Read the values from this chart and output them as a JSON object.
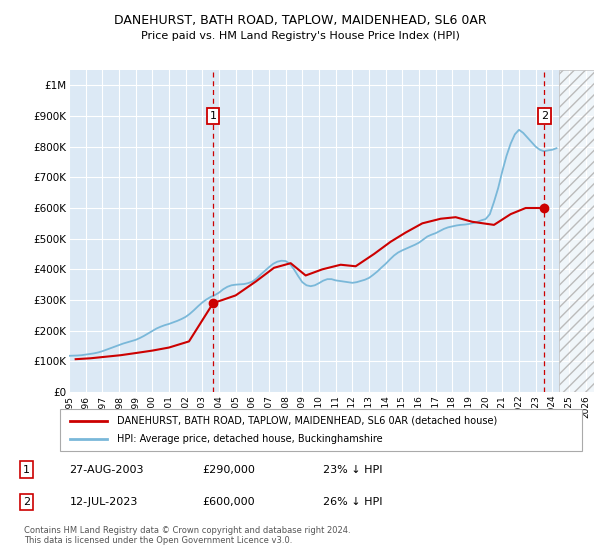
{
  "title": "DANEHURST, BATH ROAD, TAPLOW, MAIDENHEAD, SL6 0AR",
  "subtitle": "Price paid vs. HM Land Registry's House Price Index (HPI)",
  "background_color": "#dce9f5",
  "hpi_color": "#7ab8d9",
  "price_color": "#cc0000",
  "vline_color": "#cc0000",
  "ylim": [
    0,
    1050000
  ],
  "yticks": [
    0,
    100000,
    200000,
    300000,
    400000,
    500000,
    600000,
    700000,
    800000,
    900000,
    1000000
  ],
  "ytick_labels": [
    "£0",
    "£100K",
    "£200K",
    "£300K",
    "£400K",
    "£500K",
    "£600K",
    "£700K",
    "£800K",
    "£900K",
    "£1M"
  ],
  "xlim_start": 1995,
  "xlim_end": 2026.5,
  "xticks": [
    1995,
    1996,
    1997,
    1998,
    1999,
    2000,
    2001,
    2002,
    2003,
    2004,
    2005,
    2006,
    2007,
    2008,
    2009,
    2010,
    2011,
    2012,
    2013,
    2014,
    2015,
    2016,
    2017,
    2018,
    2019,
    2020,
    2021,
    2022,
    2023,
    2024,
    2025,
    2026
  ],
  "ann1_x": 2003.65,
  "ann1_y": 290000,
  "ann1_label": "1",
  "ann1_date": "27-AUG-2003",
  "ann1_price": "£290,000",
  "ann1_pct": "23% ↓ HPI",
  "ann2_x": 2023.53,
  "ann2_y": 600000,
  "ann2_label": "2",
  "ann2_date": "12-JUL-2023",
  "ann2_price": "£600,000",
  "ann2_pct": "26% ↓ HPI",
  "legend_label1": "DANEHURST, BATH ROAD, TAPLOW, MAIDENHEAD, SL6 0AR (detached house)",
  "legend_label2": "HPI: Average price, detached house, Buckinghamshire",
  "footer1": "Contains HM Land Registry data © Crown copyright and database right 2024.",
  "footer2": "This data is licensed under the Open Government Licence v3.0.",
  "hpi_data_x": [
    1995.0,
    1995.25,
    1995.5,
    1995.75,
    1996.0,
    1996.25,
    1996.5,
    1996.75,
    1997.0,
    1997.25,
    1997.5,
    1997.75,
    1998.0,
    1998.25,
    1998.5,
    1998.75,
    1999.0,
    1999.25,
    1999.5,
    1999.75,
    2000.0,
    2000.25,
    2000.5,
    2000.75,
    2001.0,
    2001.25,
    2001.5,
    2001.75,
    2002.0,
    2002.25,
    2002.5,
    2002.75,
    2003.0,
    2003.25,
    2003.5,
    2003.75,
    2004.0,
    2004.25,
    2004.5,
    2004.75,
    2005.0,
    2005.25,
    2005.5,
    2005.75,
    2006.0,
    2006.25,
    2006.5,
    2006.75,
    2007.0,
    2007.25,
    2007.5,
    2007.75,
    2008.0,
    2008.25,
    2008.5,
    2008.75,
    2009.0,
    2009.25,
    2009.5,
    2009.75,
    2010.0,
    2010.25,
    2010.5,
    2010.75,
    2011.0,
    2011.25,
    2011.5,
    2011.75,
    2012.0,
    2012.25,
    2012.5,
    2012.75,
    2013.0,
    2013.25,
    2013.5,
    2013.75,
    2014.0,
    2014.25,
    2014.5,
    2014.75,
    2015.0,
    2015.25,
    2015.5,
    2015.75,
    2016.0,
    2016.25,
    2016.5,
    2016.75,
    2017.0,
    2017.25,
    2017.5,
    2017.75,
    2018.0,
    2018.25,
    2018.5,
    2018.75,
    2019.0,
    2019.25,
    2019.5,
    2019.75,
    2020.0,
    2020.25,
    2020.5,
    2020.75,
    2021.0,
    2021.25,
    2021.5,
    2021.75,
    2022.0,
    2022.25,
    2022.5,
    2022.75,
    2023.0,
    2023.25,
    2023.5,
    2023.75,
    2024.0,
    2024.25
  ],
  "hpi_data_y": [
    118000,
    118500,
    119000,
    120000,
    122000,
    124000,
    126000,
    129000,
    133000,
    138000,
    143000,
    148000,
    153000,
    158000,
    162000,
    166000,
    170000,
    176000,
    183000,
    191000,
    199000,
    207000,
    213000,
    218000,
    222000,
    227000,
    232000,
    238000,
    245000,
    255000,
    267000,
    280000,
    292000,
    302000,
    310000,
    316000,
    324000,
    335000,
    343000,
    348000,
    350000,
    351000,
    352000,
    355000,
    360000,
    370000,
    383000,
    395000,
    407000,
    418000,
    425000,
    428000,
    427000,
    418000,
    400000,
    378000,
    358000,
    348000,
    345000,
    348000,
    355000,
    363000,
    368000,
    368000,
    364000,
    362000,
    360000,
    358000,
    356000,
    358000,
    362000,
    366000,
    372000,
    382000,
    393000,
    406000,
    418000,
    432000,
    445000,
    455000,
    462000,
    468000,
    474000,
    480000,
    487000,
    497000,
    507000,
    513000,
    518000,
    525000,
    532000,
    537000,
    540000,
    543000,
    545000,
    546000,
    548000,
    551000,
    555000,
    560000,
    564000,
    580000,
    620000,
    665000,
    720000,
    770000,
    810000,
    840000,
    855000,
    845000,
    830000,
    815000,
    800000,
    790000,
    785000,
    788000,
    790000,
    795000
  ],
  "price_data_x": [
    1995.4,
    1996.3,
    1997.2,
    1998.1,
    1999.0,
    2000.0,
    2001.0,
    2002.2,
    2003.65,
    2004.2,
    2005.0,
    2006.2,
    2007.3,
    2008.3,
    2009.2,
    2010.2,
    2011.3,
    2012.2,
    2013.3,
    2014.3,
    2015.2,
    2016.2,
    2017.3,
    2018.2,
    2019.2,
    2020.5,
    2021.5,
    2022.4,
    2023.53
  ],
  "price_data_y": [
    107000,
    110000,
    115000,
    120000,
    127000,
    135000,
    145000,
    165000,
    290000,
    300000,
    315000,
    360000,
    405000,
    420000,
    380000,
    400000,
    415000,
    410000,
    450000,
    490000,
    520000,
    550000,
    565000,
    570000,
    555000,
    545000,
    580000,
    600000,
    600000
  ],
  "hatch_x_start": 2024.4,
  "hatch_x_end": 2026.5
}
